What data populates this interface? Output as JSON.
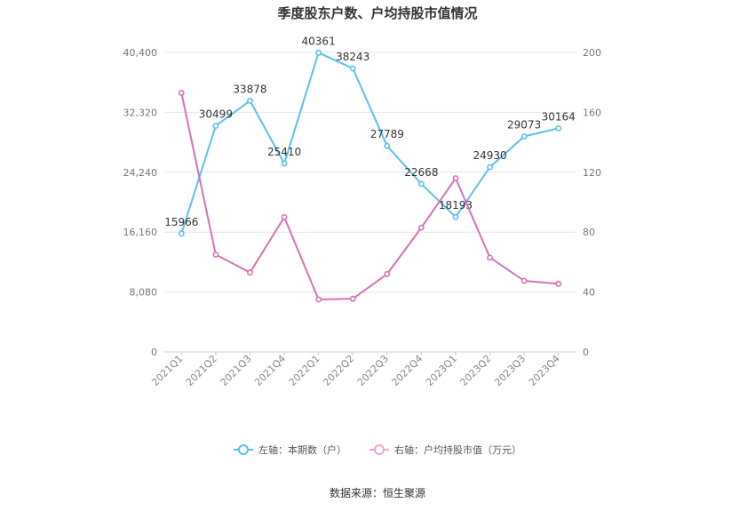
{
  "chart_data": {
    "type": "line",
    "title": "季度股东户数、户均持股市值情况",
    "categories": [
      "2021Q1",
      "2021Q2",
      "2021Q3",
      "2021Q4",
      "2022Q1",
      "2022Q2",
      "2022Q3",
      "2022Q4",
      "2023Q1",
      "2023Q2",
      "2023Q3",
      "2023Q4"
    ],
    "left_axis": {
      "ticks": [
        "0",
        "8,080",
        "16,160",
        "24,240",
        "32,320",
        "40,400"
      ],
      "ylim": [
        0,
        40400
      ]
    },
    "right_axis": {
      "ticks": [
        "0",
        "40",
        "80",
        "120",
        "160",
        "200"
      ],
      "ylim": [
        0,
        200
      ]
    },
    "series": [
      {
        "name": "左轴：本期数（户）",
        "axis": "left",
        "color": "#5bc0eb",
        "values": [
          15966,
          30499,
          33878,
          25410,
          40361,
          38243,
          27789,
          22668,
          18193,
          24930,
          29073,
          30164
        ],
        "labels": [
          "15966",
          "30499",
          "33878",
          "25410",
          "40361",
          "38243",
          "27789",
          "22668",
          "18193",
          "24930",
          "29073",
          "30164"
        ]
      },
      {
        "name": "右轴：户均持股市值（万元）",
        "axis": "right",
        "color": "#d672b5",
        "values": [
          173,
          65,
          53,
          90,
          35,
          35.5,
          52,
          83,
          116,
          63,
          47.5,
          45.5
        ]
      }
    ],
    "grid": true
  },
  "source_text": "数据来源：恒生聚源"
}
